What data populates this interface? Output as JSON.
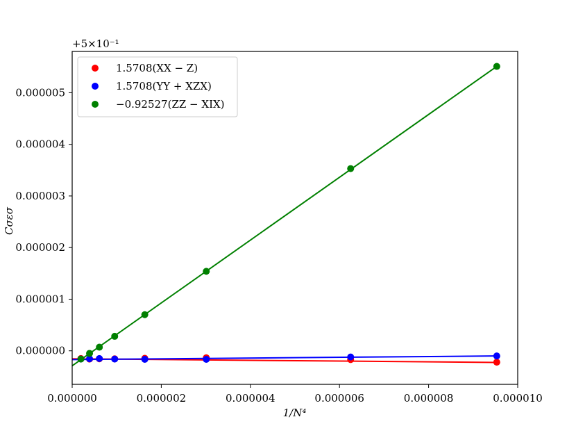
{
  "chart_data": {
    "type": "scatter",
    "title": "",
    "xlabel": "1/N⁴",
    "ylabel": "Cσεσ",
    "offset_label": "+5×10⁻¹",
    "xlim": [
      0,
      1e-05
    ],
    "ylim": [
      -6.5e-07,
      5.8e-06
    ],
    "grid": false,
    "legend_position": "upper-left",
    "x_ticks": [
      0,
      2e-06,
      4e-06,
      6e-06,
      8e-06,
      1e-05
    ],
    "x_tick_labels": [
      "0.000000",
      "0.000002",
      "0.000004",
      "0.000006",
      "0.000008",
      "0.000010"
    ],
    "y_ticks": [
      0,
      1e-06,
      2e-06,
      3e-06,
      4e-06,
      5e-06
    ],
    "y_tick_labels": [
      "0.000000",
      "0.000001",
      "0.000002",
      "0.000003",
      "0.000004",
      "0.000005"
    ],
    "series": [
      {
        "name": "1.5708(XX − Z)",
        "color": "#ff0000",
        "x": [
          1.95e-07,
          3.9e-07,
          6.1e-07,
          9.54e-07,
          1.63e-06,
          3.01e-06,
          6.25e-06,
          9.53e-06
        ],
        "y": [
          -1.5e-07,
          -1.6e-07,
          -1.55e-07,
          -1.55e-07,
          -1.45e-07,
          -1.35e-07,
          -1.7e-07,
          -2.2e-07
        ],
        "fit": [
          [
            0,
            -1.55e-07
          ],
          [
            9.53e-06,
            -2.25e-07
          ]
        ]
      },
      {
        "name": "1.5708(YY + XZX)",
        "color": "#0000ff",
        "x": [
          1.95e-07,
          3.9e-07,
          6.1e-07,
          9.54e-07,
          1.63e-06,
          3.01e-06,
          6.25e-06,
          9.53e-06
        ],
        "y": [
          -1.6e-07,
          -1.55e-07,
          -1.5e-07,
          -1.6e-07,
          -1.65e-07,
          -1.65e-07,
          -1.2e-07,
          -1e-07
        ],
        "fit": [
          [
            0,
            -1.7e-07
          ],
          [
            9.53e-06,
            -1e-07
          ]
        ]
      },
      {
        "name": "−0.92527(ZZ − XIX)",
        "color": "#008000",
        "x": [
          1.95e-07,
          3.9e-07,
          6.1e-07,
          9.54e-07,
          1.63e-06,
          3.01e-06,
          6.25e-06,
          9.53e-06
        ],
        "y": [
          -1.6e-07,
          -5e-08,
          7e-08,
          2.8e-07,
          7e-07,
          1.54e-06,
          3.53e-06,
          5.51e-06
        ],
        "fit": [
          [
            0,
            -2.9e-07
          ],
          [
            9.53e-06,
            5.51e-06
          ]
        ]
      }
    ]
  }
}
